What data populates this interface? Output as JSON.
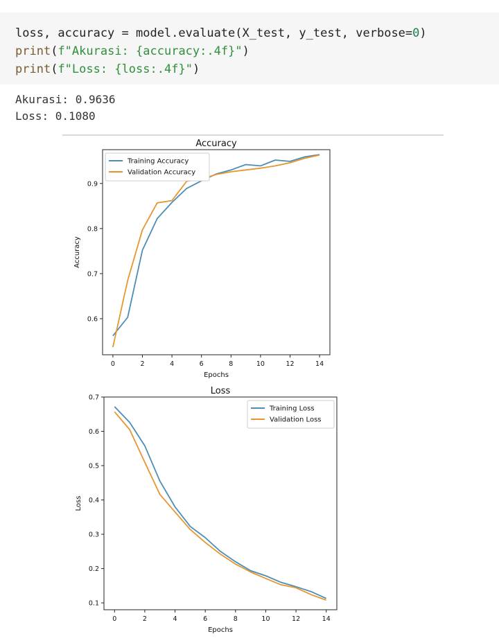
{
  "code": {
    "line1": {
      "a": "loss, accuracy = model.evaluate(X_test, y_test, verbose=",
      "num": "0",
      "b": ")"
    },
    "line2": {
      "fn": "print",
      "open": "(",
      "str1": "f\"Akurasi: ",
      "expr": "{accuracy:.4f}",
      "str2": "\"",
      "close": ")"
    },
    "line3": {
      "fn": "print",
      "open": "(",
      "str1": "f\"Loss: ",
      "expr": "{loss:.4f}",
      "str2": "\"",
      "close": ")"
    }
  },
  "output": {
    "line1": "Akurasi: 0.9636",
    "line2": "Loss: 0.1080"
  },
  "colors": {
    "training": "#4c8db5",
    "validation": "#e8952f"
  },
  "chart_data": [
    {
      "type": "line",
      "title": "Accuracy",
      "xlabel": "Epochs",
      "ylabel": "Accuracy",
      "x": [
        0,
        1,
        2,
        3,
        4,
        5,
        6,
        7,
        8,
        9,
        10,
        11,
        12,
        13,
        14
      ],
      "xticks": [
        0,
        2,
        4,
        6,
        8,
        10,
        12,
        14
      ],
      "yticks": [
        0.6,
        0.7,
        0.8,
        0.9
      ],
      "xlim": [
        -0.7,
        14.7
      ],
      "ylim": [
        0.52,
        0.975
      ],
      "legend": "top-left",
      "series": [
        {
          "name": "Training Accuracy",
          "values": [
            0.562,
            0.603,
            0.752,
            0.822,
            0.858,
            0.889,
            0.906,
            0.921,
            0.93,
            0.942,
            0.939,
            0.952,
            0.949,
            0.959,
            0.964
          ]
        },
        {
          "name": "Validation Accuracy",
          "values": [
            0.537,
            0.685,
            0.797,
            0.857,
            0.862,
            0.905,
            0.91,
            0.92,
            0.926,
            0.93,
            0.934,
            0.939,
            0.946,
            0.956,
            0.963
          ]
        }
      ]
    },
    {
      "type": "line",
      "title": "Loss",
      "xlabel": "Epochs",
      "ylabel": "Loss",
      "x": [
        0,
        1,
        2,
        3,
        4,
        5,
        6,
        7,
        8,
        9,
        10,
        11,
        12,
        13,
        14
      ],
      "xticks": [
        0,
        2,
        4,
        6,
        8,
        10,
        12,
        14
      ],
      "yticks": [
        0.1,
        0.2,
        0.3,
        0.4,
        0.5,
        0.6,
        0.7
      ],
      "xlim": [
        -0.7,
        14.7
      ],
      "ylim": [
        0.08,
        0.7
      ],
      "legend": "top-right",
      "series": [
        {
          "name": "Training Loss",
          "values": [
            0.672,
            0.626,
            0.558,
            0.455,
            0.38,
            0.323,
            0.29,
            0.25,
            0.22,
            0.194,
            0.179,
            0.16,
            0.147,
            0.133,
            0.113
          ]
        },
        {
          "name": "Validation Loss",
          "values": [
            0.657,
            0.605,
            0.51,
            0.416,
            0.365,
            0.314,
            0.276,
            0.242,
            0.213,
            0.19,
            0.171,
            0.153,
            0.144,
            0.124,
            0.108
          ]
        }
      ]
    }
  ]
}
